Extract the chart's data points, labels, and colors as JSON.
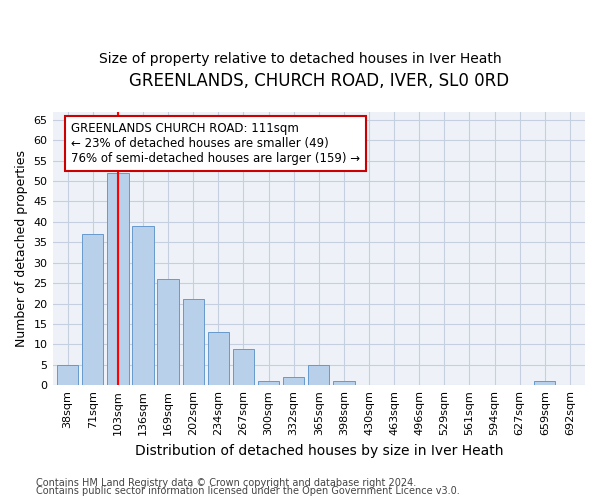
{
  "title": "GREENLANDS, CHURCH ROAD, IVER, SL0 0RD",
  "subtitle": "Size of property relative to detached houses in Iver Heath",
  "xlabel_bottom": "Distribution of detached houses by size in Iver Heath",
  "ylabel": "Number of detached properties",
  "categories": [
    "38sqm",
    "71sqm",
    "103sqm",
    "136sqm",
    "169sqm",
    "202sqm",
    "234sqm",
    "267sqm",
    "300sqm",
    "332sqm",
    "365sqm",
    "398sqm",
    "430sqm",
    "463sqm",
    "496sqm",
    "529sqm",
    "561sqm",
    "594sqm",
    "627sqm",
    "659sqm",
    "692sqm"
  ],
  "values": [
    5,
    37,
    52,
    39,
    26,
    21,
    13,
    9,
    1,
    2,
    5,
    1,
    0,
    0,
    0,
    0,
    0,
    0,
    0,
    1,
    0
  ],
  "bar_color": "#b8d0ea",
  "bar_edge_color": "#6699cc",
  "red_line_x": 2,
  "annotation_text": "GREENLANDS CHURCH ROAD: 111sqm\n← 23% of detached houses are smaller (49)\n76% of semi-detached houses are larger (159) →",
  "annotation_box_color": "#ffffff",
  "annotation_box_edge": "#cc0000",
  "ylim": [
    0,
    67
  ],
  "yticks": [
    0,
    5,
    10,
    15,
    20,
    25,
    30,
    35,
    40,
    45,
    50,
    55,
    60,
    65
  ],
  "footer_line1": "Contains HM Land Registry data © Crown copyright and database right 2024.",
  "footer_line2": "Contains public sector information licensed under the Open Government Licence v3.0.",
  "background_color": "#eef2f8",
  "grid_color": "#c5cfe0",
  "title_fontsize": 12,
  "subtitle_fontsize": 10,
  "ylabel_fontsize": 9,
  "xlabel_fontsize": 10,
  "tick_fontsize": 8,
  "footer_fontsize": 7,
  "ann_fontsize": 8.5
}
